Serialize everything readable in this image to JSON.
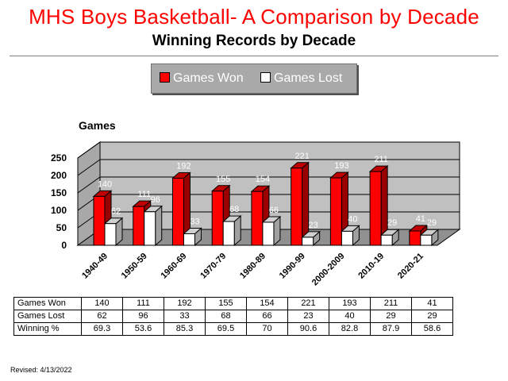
{
  "title": "MHS Boys Basketball- A Comparison by Decade",
  "subtitle": "Winning Records by Decade",
  "legend": {
    "won_label": "Games Won",
    "lost_label": "Games Lost"
  },
  "y_unit_label": "Games",
  "revised": "Revised: 4/13/2022",
  "colors": {
    "won": "#ff0000",
    "lost": "#ffffff",
    "title": "#ff0000",
    "wall": "#c0c0c0"
  },
  "chart_data": {
    "type": "bar",
    "title": "Winning Records by Decade",
    "ylabel": "Games",
    "xlabel": "",
    "categories": [
      "1940-49",
      "1950-59",
      "1960-69",
      "1970-79",
      "1980-89",
      "1990-99",
      "2000-2009",
      "2010-19",
      "2020-21"
    ],
    "series": [
      {
        "name": "Games Won",
        "values": [
          140,
          111,
          192,
          155,
          154,
          221,
          193,
          211,
          41
        ]
      },
      {
        "name": "Games Lost",
        "values": [
          62,
          96,
          33,
          68,
          66,
          23,
          40,
          29,
          29
        ]
      }
    ],
    "y_ticks": [
      0,
      50,
      100,
      150,
      200,
      250
    ],
    "ylim": [
      0,
      250
    ],
    "grid": true,
    "legend_position": "top-center"
  },
  "table": {
    "rows": [
      {
        "label": "Games Won",
        "values": [
          "140",
          "111",
          "192",
          "155",
          "154",
          "221",
          "193",
          "211",
          "41"
        ]
      },
      {
        "label": "Games Lost",
        "values": [
          "62",
          "96",
          "33",
          "68",
          "66",
          "23",
          "40",
          "29",
          "29"
        ]
      },
      {
        "label": "Winning %",
        "values": [
          "69.3",
          "53.6",
          "85.3",
          "69.5",
          "70",
          "90.6",
          "82.8",
          "87.9",
          "58.6"
        ]
      }
    ]
  }
}
